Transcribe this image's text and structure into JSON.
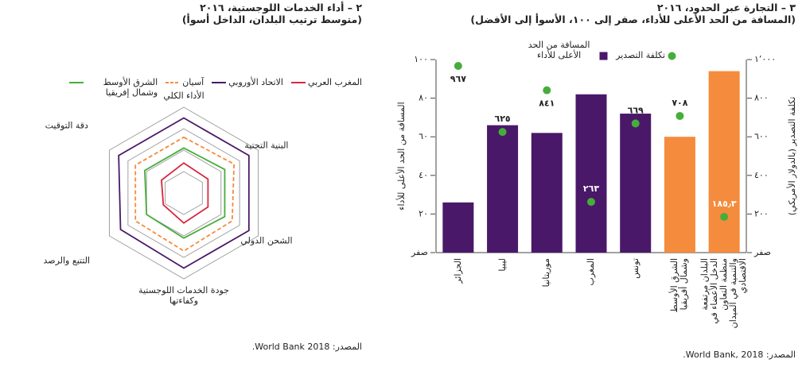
{
  "chart_data": [
    {
      "type": "radar",
      "title": "٢ – أداء الخدمات اللوجستية، ٢٠١٦",
      "subtitle": "(متوسط ترتيب البلدان، الداخل أسوأ)",
      "categories": [
        "الأداء الكلي",
        "البنية التحتية",
        "الشحن الدولي",
        "جودة الخدمات اللوجستية وكفاءتها",
        "التتبع والرصد",
        "دقة التوقيت"
      ],
      "series": [
        {
          "name": "المغرب العربي",
          "color": "#d8263e",
          "values": [
            1.4,
            1.3,
            1.3,
            1.4,
            1.1,
            1.2
          ]
        },
        {
          "name": "الاتحاد الأوروبي",
          "color": "#4a1868",
          "values": [
            3.5,
            3.5,
            3.5,
            3.5,
            3.4,
            3.5
          ]
        },
        {
          "name": "آسيان",
          "color": "#f58b3c",
          "dashed": true,
          "values": [
            2.6,
            2.7,
            2.6,
            2.7,
            2.6,
            2.6
          ]
        },
        {
          "name": "الشرق الأوسط وشمال إفريقيا",
          "color": "#47ad3a",
          "values": [
            2.1,
            2.2,
            2.2,
            2.1,
            2.0,
            2.1
          ]
        }
      ],
      "rlim": [
        0,
        4
      ],
      "rticks": [
        1,
        2,
        3,
        4
      ],
      "source": "المصدر: World Bank 2018."
    },
    {
      "type": "combo",
      "title": "٣ – التجارة عبر الحدود، ٢٠١٦",
      "subtitle": "(المسافة من الحد الأعلى للأداء، صفر إلى ١٠٠، الأسوأ إلى الأفضل)",
      "categories": [
        "الجزائر",
        "ليبيا",
        "موريتانيا",
        "المغرب",
        "تونس",
        "الشرق الأوسط وشمال أفريقيا",
        "البلدان مرتفعة الدخل الأعضاء في منظمة التعاون والتنمية في الميدان الاقتصادي"
      ],
      "series": [
        {
          "name": "المسافة من الحد الأعلى للأداء",
          "type": "bar",
          "color": "#4a1868",
          "colors": [
            "#4a1868",
            "#4a1868",
            "#4a1868",
            "#4a1868",
            "#4a1868",
            "#f58b3c",
            "#f58b3c"
          ],
          "values": [
            26,
            66,
            62,
            82,
            72,
            60,
            94
          ]
        },
        {
          "name": "تكلفة التصدير",
          "type": "scatter",
          "axis": "y2",
          "color": "#47ad3a",
          "values": [
            967,
            625,
            841,
            263,
            669,
            708,
            185.3
          ],
          "value_labels": [
            "٩٦٧",
            "٦٢٥",
            "٨٤١",
            "٢٦٣",
            "٦٦٩",
            "٧٠٨",
            "١٨٥٫٣"
          ]
        }
      ],
      "ylabel": "المسافة من الحد الأعلى للأداء",
      "y2label": "تكلفة التصدير (بالدولار الأمريكي)",
      "ylim": [
        0,
        100
      ],
      "yticks": [
        {
          "value": 0,
          "label": "صفر"
        },
        {
          "value": 20,
          "label": "٢٠"
        },
        {
          "value": 40,
          "label": "٤٠"
        },
        {
          "value": 60,
          "label": "٦٠"
        },
        {
          "value": 80,
          "label": "٨٠"
        },
        {
          "value": 100,
          "label": "١٠٠"
        }
      ],
      "y2lim": [
        0,
        1000
      ],
      "y2ticks": [
        {
          "value": 0,
          "label": "صفر"
        },
        {
          "value": 200,
          "label": "٢٠٠"
        },
        {
          "value": 400,
          "label": "٤٠٠"
        },
        {
          "value": 600,
          "label": "٦٠٠"
        },
        {
          "value": 800,
          "label": "٨٠٠"
        },
        {
          "value": 1000,
          "label": "١٬٠٠٠"
        }
      ],
      "source": "المصدر: World Bank, 2018."
    }
  ]
}
